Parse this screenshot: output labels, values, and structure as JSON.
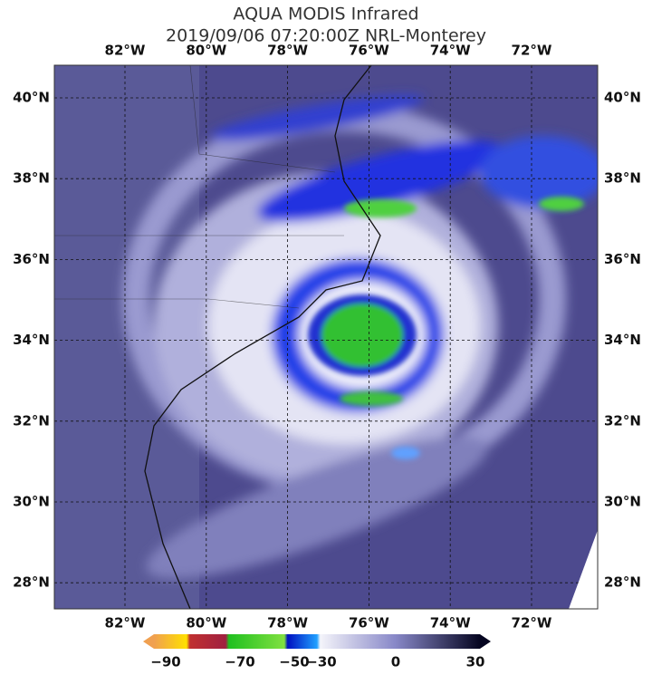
{
  "header": {
    "title": "AQUA MODIS Infrared",
    "subtitle": "2019/09/06 07:20:00Z NRL-Monterey"
  },
  "map": {
    "lon_labels": [
      "82°W",
      "80°W",
      "78°W",
      "76°W",
      "74°W",
      "72°W"
    ],
    "lat_labels": [
      "40°N",
      "38°N",
      "36°N",
      "34°N",
      "32°N",
      "30°N",
      "28°N"
    ]
  },
  "colorbar": {
    "tick_labels": [
      "−90",
      "−70",
      "−50",
      "−30",
      "0",
      "30"
    ]
  }
}
